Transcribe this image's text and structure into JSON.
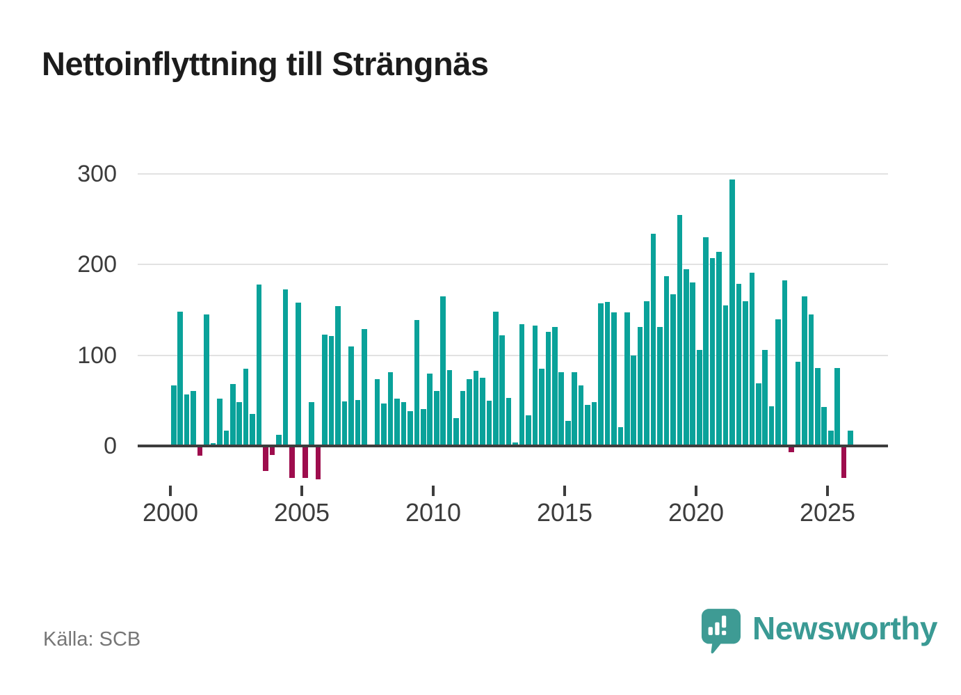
{
  "chart_data": {
    "type": "bar",
    "title": "Nettoinflyttning till Strängnäs",
    "source": "Källa: SCB",
    "frequency": "quarterly",
    "series_name": "Nettoinflyttning per kvartal",
    "x_tick_years": [
      2000,
      2005,
      2010,
      2015,
      2020,
      2025
    ],
    "y_ticks": [
      0,
      100,
      200,
      300
    ],
    "ylim": [
      -50,
      310
    ],
    "grid": "horizontal",
    "legend": "none",
    "colors": {
      "positive": "#0aa29a",
      "negative": "#9e0d4d"
    },
    "years": [
      {
        "year": 2000,
        "values": [
          67,
          148,
          57,
          61
        ]
      },
      {
        "year": 2001,
        "values": [
          -11,
          145,
          3,
          52
        ]
      },
      {
        "year": 2002,
        "values": [
          17,
          68,
          48,
          85
        ]
      },
      {
        "year": 2003,
        "values": [
          35,
          178,
          -28,
          -10
        ]
      },
      {
        "year": 2004,
        "values": [
          12,
          173,
          -35,
          158
        ]
      },
      {
        "year": 2005,
        "values": [
          -35,
          48,
          -37,
          123
        ]
      },
      {
        "year": 2006,
        "values": [
          121,
          154,
          49,
          110
        ]
      },
      {
        "year": 2007,
        "values": [
          51,
          129,
          1,
          74
        ]
      },
      {
        "year": 2008,
        "values": [
          47,
          81,
          52,
          48
        ]
      },
      {
        "year": 2009,
        "values": [
          38,
          139,
          41,
          80
        ]
      },
      {
        "year": 2010,
        "values": [
          61,
          165,
          84,
          31
        ]
      },
      {
        "year": 2011,
        "values": [
          61,
          74,
          83,
          75
        ]
      },
      {
        "year": 2012,
        "values": [
          50,
          148,
          122,
          53
        ]
      },
      {
        "year": 2013,
        "values": [
          4,
          134,
          34,
          133
        ]
      },
      {
        "year": 2014,
        "values": [
          85,
          126,
          131,
          81
        ]
      },
      {
        "year": 2015,
        "values": [
          28,
          81,
          67,
          45
        ]
      },
      {
        "year": 2016,
        "values": [
          48,
          157,
          159,
          147
        ]
      },
      {
        "year": 2017,
        "values": [
          21,
          147,
          100,
          131
        ]
      },
      {
        "year": 2018,
        "values": [
          160,
          234,
          131,
          187
        ]
      },
      {
        "year": 2019,
        "values": [
          167,
          255,
          195,
          180
        ]
      },
      {
        "year": 2020,
        "values": [
          106,
          230,
          207,
          214
        ]
      },
      {
        "year": 2021,
        "values": [
          155,
          294,
          179,
          160
        ]
      },
      {
        "year": 2022,
        "values": [
          191,
          69,
          106,
          44
        ]
      },
      {
        "year": 2023,
        "values": [
          140,
          183,
          -7,
          93
        ]
      },
      {
        "year": 2024,
        "values": [
          165,
          145,
          86,
          43
        ]
      },
      {
        "year": 2025,
        "values": [
          17,
          86,
          -35,
          17
        ]
      }
    ]
  },
  "branding": {
    "logo_text": "Newsworthy",
    "logo_icon": "newsworthy-speech-bubble-bar-chart-icon",
    "logo_color": "#3e9b94"
  }
}
